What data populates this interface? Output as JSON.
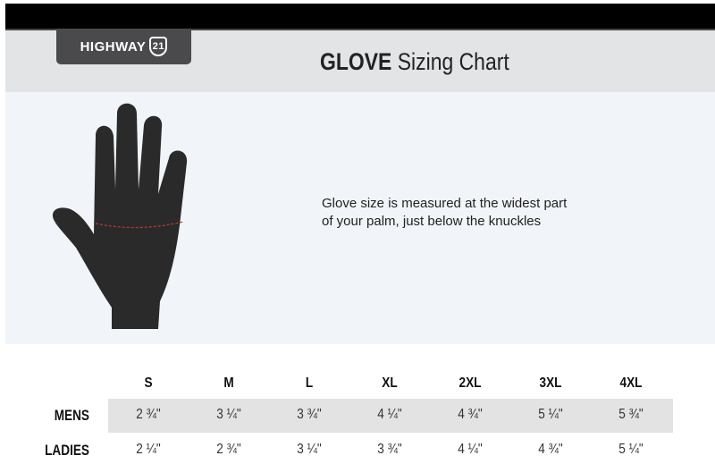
{
  "brand": {
    "name": "HIGHWAY",
    "number": "21"
  },
  "title": {
    "bold": "GLOVE",
    "rest": "Sizing Chart"
  },
  "description": [
    "Glove size is measured at the widest part",
    "of your palm, just below the knuckles"
  ],
  "table": {
    "sizes": [
      "S",
      "M",
      "L",
      "XL",
      "2XL",
      "3XL",
      "4XL"
    ],
    "rows": [
      {
        "label": "MENS",
        "values": [
          "2 ¾\"",
          "3 ¼\"",
          "3 ¾\"",
          "4 ¼\"",
          "4 ¾\"",
          "5 ¼\"",
          "5 ¾\""
        ]
      },
      {
        "label": "LADIES",
        "values": [
          "2 ¼\"",
          "2 ¾\"",
          "3 ¼\"",
          "3 ¾\"",
          "4 ¼\"",
          "4 ¾\"",
          "5 ¼\""
        ]
      }
    ]
  },
  "colors": {
    "hand": "#2a2a2a",
    "measure_line": "#c0392b",
    "header_bg": "#e3e4e6",
    "panel_bg": "#f1f4f8"
  }
}
